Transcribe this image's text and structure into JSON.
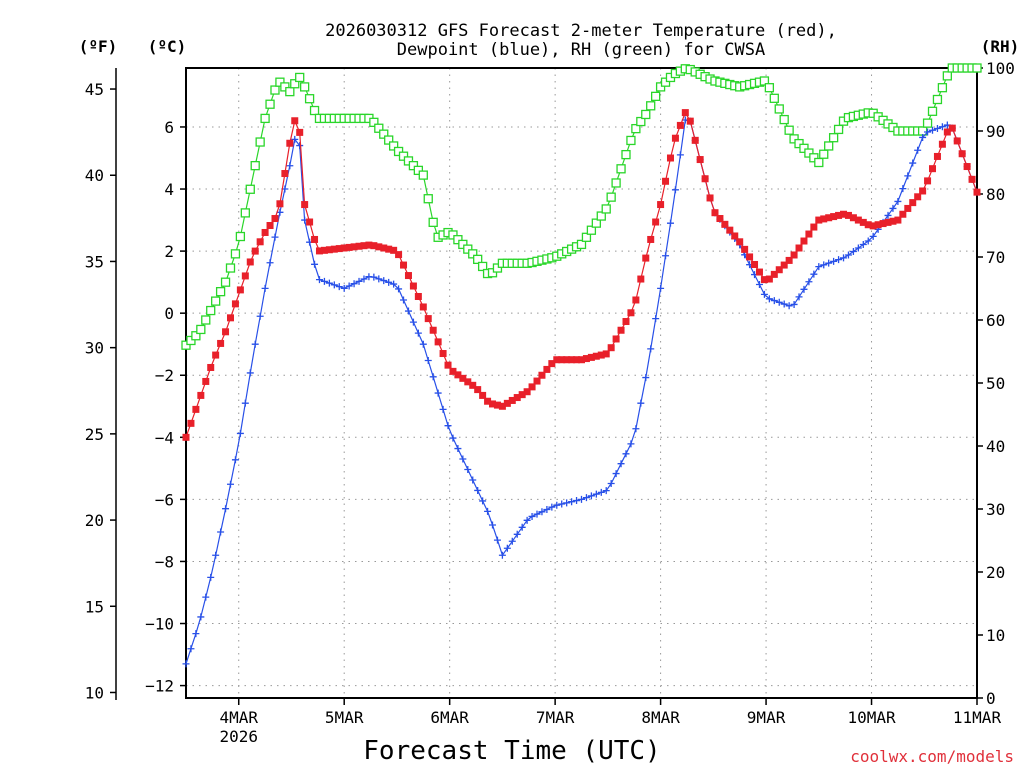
{
  "chart_data": {
    "type": "line",
    "title": [
      "2026030312 GFS Forecast 2-meter Temperature (red),",
      "Dewpoint (blue), RH (green) for CWSA"
    ],
    "xlabel": "Forecast Time (UTC)",
    "credit": "coolwx.com/models",
    "y_units": {
      "fahrenheit": "(ºF)",
      "celsius": "(ºC)",
      "rh": "(RH)"
    },
    "x_axis": {
      "unit": "days since 2026-03-03 12Z",
      "range": [
        0,
        7.5
      ],
      "ticks": [
        {
          "value": 0.5,
          "label": "4MAR",
          "sublabel": "2026"
        },
        {
          "value": 1.5,
          "label": "5MAR"
        },
        {
          "value": 2.5,
          "label": "6MAR"
        },
        {
          "value": 3.5,
          "label": "7MAR"
        },
        {
          "value": 4.5,
          "label": "8MAR"
        },
        {
          "value": 5.5,
          "label": "9MAR"
        },
        {
          "value": 6.5,
          "label": "10MAR"
        },
        {
          "value": 7.5,
          "label": "11MAR"
        }
      ]
    },
    "y_celsius": {
      "range": [
        -12.4,
        7.9
      ],
      "ticks": [
        -12,
        -10,
        -8,
        -6,
        -4,
        -2,
        0,
        2,
        4,
        6
      ]
    },
    "y_fahrenheit": {
      "ticks": [
        10,
        15,
        20,
        25,
        30,
        35,
        40,
        45
      ]
    },
    "y_rh": {
      "range": [
        0,
        100
      ],
      "ticks": [
        0,
        10,
        20,
        30,
        40,
        50,
        60,
        70,
        80,
        90,
        100
      ]
    },
    "series": [
      {
        "name": "Temperature",
        "unit": "°C",
        "color": "#e8202a",
        "marker": "filled-square",
        "x": [
          0,
          0.125,
          0.25,
          0.375,
          0.5,
          0.625,
          0.75,
          0.875,
          1.0,
          1.0625,
          1.125,
          1.25,
          1.5,
          1.75,
          2.0,
          2.25,
          2.375,
          2.5,
          2.75,
          2.875,
          3.0,
          3.25,
          3.5,
          3.75,
          4.0,
          4.25,
          4.375,
          4.5,
          4.625,
          4.75,
          5.0,
          5.25,
          5.5,
          5.75,
          6.0,
          6.25,
          6.5,
          6.75,
          7.0,
          7.25,
          7.5
        ],
        "values": [
          -4.0,
          -2.8,
          -1.6,
          -0.6,
          0.6,
          1.8,
          2.6,
          3.2,
          5.8,
          6.6,
          3.5,
          2.0,
          2.1,
          2.2,
          2.0,
          0.2,
          -0.8,
          -1.8,
          -2.4,
          -2.9,
          -3.0,
          -2.5,
          -1.5,
          -1.5,
          -1.3,
          0.2,
          2.0,
          3.5,
          5.5,
          6.6,
          3.3,
          2.3,
          1.0,
          1.8,
          3.0,
          3.2,
          2.8,
          3.0,
          4.0,
          6.1,
          3.9
        ]
      },
      {
        "name": "Dewpoint",
        "unit": "°C",
        "color": "#2850e8",
        "marker": "plus",
        "x": [
          0,
          0.125,
          0.25,
          0.375,
          0.5,
          0.625,
          0.75,
          0.875,
          1.0,
          1.0625,
          1.125,
          1.25,
          1.5,
          1.75,
          2.0,
          2.25,
          2.5,
          2.75,
          2.875,
          3.0,
          3.25,
          3.5,
          3.75,
          4.0,
          4.25,
          4.375,
          4.5,
          4.625,
          4.75,
          5.0,
          5.25,
          5.5,
          5.75,
          6.0,
          6.25,
          6.5,
          6.75,
          7.0,
          7.25,
          7.5
        ],
        "values": [
          -11.3,
          -10.0,
          -8.3,
          -6.3,
          -4.2,
          -1.6,
          0.8,
          3.0,
          5.0,
          6.2,
          3.0,
          1.1,
          0.8,
          1.2,
          0.9,
          -1.0,
          -3.8,
          -5.6,
          -6.5,
          -7.8,
          -6.6,
          -6.2,
          -6.0,
          -5.7,
          -4.0,
          -1.8,
          0.8,
          3.6,
          6.6,
          3.3,
          2.2,
          0.5,
          0.2,
          1.5,
          1.8,
          2.4,
          3.6,
          5.8,
          6.1,
          3.9
        ]
      },
      {
        "name": "Relative Humidity",
        "unit": "%",
        "color": "#2ad62a",
        "marker": "open-square",
        "x": [
          0,
          0.125,
          0.25,
          0.375,
          0.5,
          0.625,
          0.75,
          0.875,
          1.0,
          1.0625,
          1.125,
          1.25,
          1.5,
          1.75,
          2.0,
          2.25,
          2.375,
          2.5,
          2.75,
          2.875,
          3.0,
          3.25,
          3.5,
          3.75,
          4.0,
          4.25,
          4.375,
          4.5,
          4.625,
          4.75,
          5.0,
          5.25,
          5.5,
          5.75,
          6.0,
          6.25,
          6.5,
          6.75,
          7.0,
          7.25,
          7.5
        ],
        "values": [
          56,
          58,
          62,
          66,
          72,
          82,
          92,
          98,
          96,
          99,
          97,
          92,
          92,
          92,
          87,
          83,
          73,
          74,
          70,
          67,
          69,
          69,
          70,
          72,
          78,
          90,
          93,
          97,
          99,
          100,
          98,
          97,
          98,
          89,
          85,
          92,
          93,
          90,
          90,
          100,
          100
        ]
      }
    ]
  }
}
